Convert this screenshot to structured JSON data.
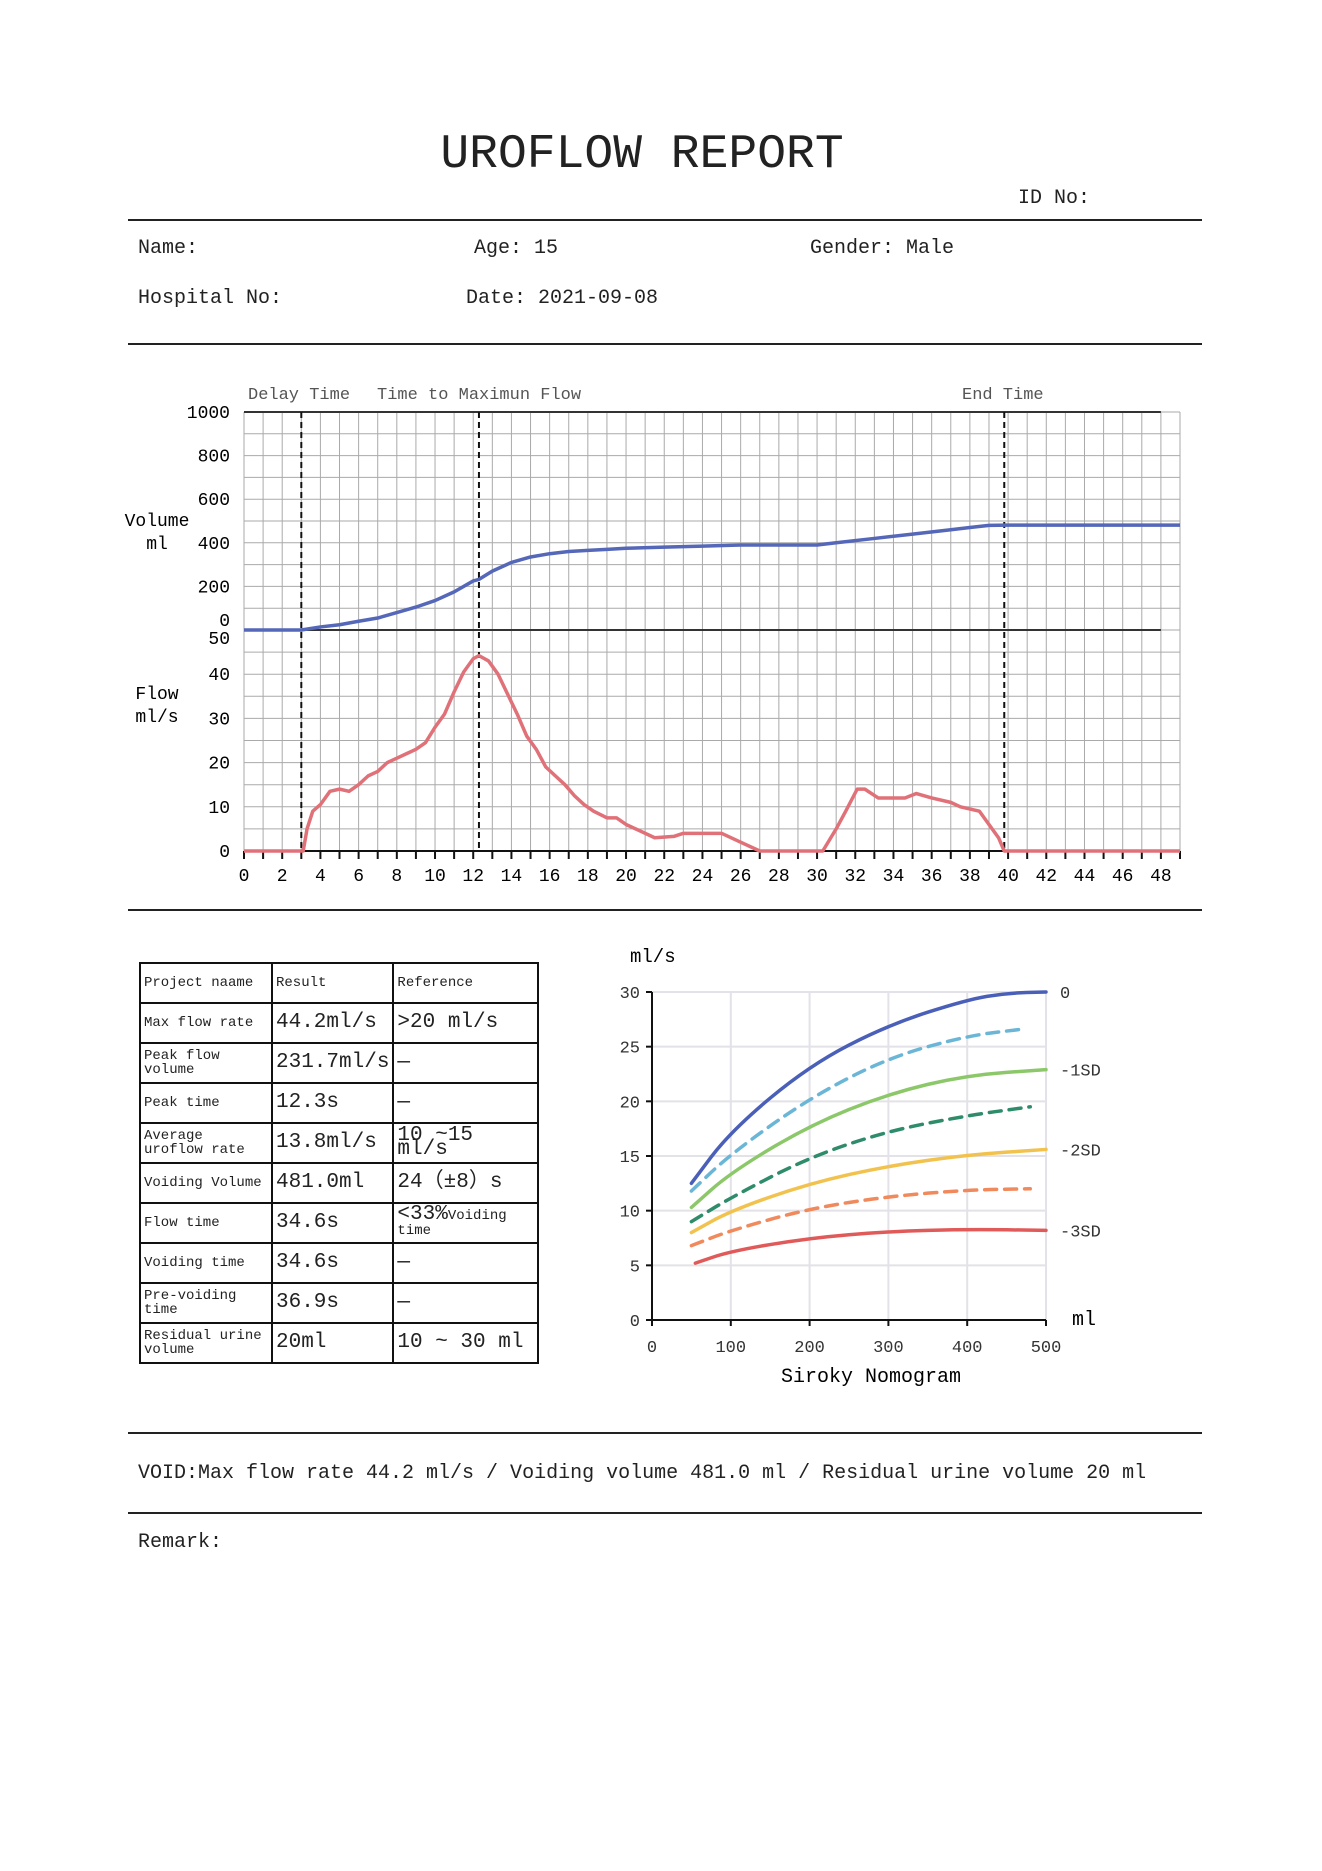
{
  "header": {
    "title": "UROFLOW REPORT",
    "id_label": "ID No:"
  },
  "patient": {
    "name_label": "Name:",
    "age_label": "Age:",
    "age": "15",
    "gender_label": "Gender:",
    "gender": "Male",
    "hospital_label": "Hospital No:",
    "date_label": "Date:",
    "date": "2021-09-08"
  },
  "chart_data": [
    {
      "type": "line",
      "markers": {
        "delay_time": {
          "label": "Delay Time",
          "t": 3.0
        },
        "max_flow": {
          "label": "Time to Maximun Flow",
          "t": 12.3
        },
        "end_time": {
          "label": "End Time",
          "t": 39.8
        }
      },
      "xlim": [
        0,
        49
      ],
      "x_ticks": [
        0,
        2,
        4,
        6,
        8,
        10,
        12,
        14,
        16,
        18,
        20,
        22,
        24,
        26,
        28,
        30,
        32,
        34,
        36,
        38,
        40,
        42,
        44,
        46,
        48
      ],
      "grid": true,
      "volume": {
        "ylabel": [
          "Volume",
          "ml"
        ],
        "ylim": [
          0,
          1000
        ],
        "y_ticks": [
          0,
          200,
          400,
          600,
          800,
          1000
        ],
        "color": "#5567b8",
        "t": [
          0,
          3,
          4,
          5,
          6,
          7,
          8,
          9,
          10,
          11,
          12,
          12.3,
          13,
          14,
          15,
          16,
          17,
          18,
          19,
          20,
          22,
          24,
          26,
          28,
          30,
          31,
          33,
          35,
          37,
          38,
          39,
          40,
          49
        ],
        "values": [
          0,
          0,
          14,
          24,
          40,
          55,
          80,
          105,
          135,
          175,
          225,
          232,
          270,
          310,
          335,
          350,
          360,
          365,
          370,
          375,
          380,
          385,
          390,
          390,
          390,
          400,
          420,
          440,
          460,
          470,
          480,
          481,
          481
        ]
      },
      "flow": {
        "ylabel": [
          "Flow",
          "ml/s"
        ],
        "ylim": [
          0,
          50
        ],
        "y_ticks": [
          0,
          10,
          20,
          30,
          40,
          50
        ],
        "color": "#e07178",
        "t": [
          0,
          3.1,
          3.3,
          3.6,
          4,
          4.5,
          5,
          5.5,
          6,
          6.5,
          7,
          7.5,
          8,
          8.5,
          9,
          9.5,
          10,
          10.5,
          11,
          11.5,
          12,
          12.3,
          12.8,
          13.3,
          13.8,
          14.3,
          14.8,
          15.3,
          15.8,
          16.3,
          16.8,
          17.3,
          17.8,
          18.3,
          19,
          19.5,
          20,
          20.5,
          21.5,
          22.5,
          23,
          24,
          25,
          26,
          27,
          30.3,
          31,
          31.5,
          32.1,
          32.5,
          33.2,
          34,
          34.6,
          35.2,
          36,
          37,
          37.5,
          38.5,
          39,
          39.5,
          39.8,
          49
        ],
        "values": [
          0,
          0,
          5,
          9,
          10.5,
          13.5,
          14,
          13.5,
          15,
          17,
          18,
          20,
          21,
          22,
          23,
          24.5,
          28,
          31,
          36,
          40.5,
          43.5,
          44.2,
          43,
          40,
          35.5,
          31,
          26,
          23,
          19,
          17,
          15,
          12.5,
          10.5,
          9,
          7.5,
          7.5,
          6,
          5,
          3,
          3.3,
          4,
          4,
          4,
          2,
          0,
          0,
          5,
          9,
          14,
          14,
          12,
          12,
          12,
          13,
          12,
          11,
          10,
          9,
          6,
          3,
          0,
          0
        ]
      }
    },
    {
      "type": "line",
      "title": "Siroky Nomogram",
      "xlabel": "ml",
      "ylabel": "ml/s",
      "xlim": [
        0,
        500
      ],
      "ylim": [
        0,
        30
      ],
      "x_ticks": [
        0,
        100,
        200,
        300,
        400,
        500
      ],
      "y_ticks": [
        0,
        5,
        10,
        15,
        20,
        25,
        30
      ],
      "grid": true,
      "series": [
        {
          "name": "0",
          "color": "#4a5fb8",
          "dashed": false,
          "x": [
            50,
            100,
            200,
            300,
            400,
            450,
            500
          ],
          "y": [
            12.5,
            17.3,
            23.3,
            27,
            29.3,
            29.9,
            30
          ]
        },
        {
          "color": "#6bb6d6",
          "dashed": true,
          "x": [
            50,
            100,
            200,
            300,
            400,
            470
          ],
          "y": [
            11.8,
            15.2,
            20.3,
            24,
            26,
            26.6
          ]
        },
        {
          "name": "-1SD",
          "color": "#8cc86a",
          "dashed": false,
          "x": [
            50,
            100,
            200,
            300,
            400,
            500
          ],
          "y": [
            10.3,
            13.5,
            17.8,
            20.7,
            22.4,
            22.9
          ]
        },
        {
          "color": "#2e8c6a",
          "dashed": true,
          "x": [
            50,
            100,
            200,
            300,
            400,
            480
          ],
          "y": [
            9,
            11.2,
            14.9,
            17.3,
            18.7,
            19.5
          ]
        },
        {
          "name": "-2SD",
          "color": "#f2c24e",
          "dashed": false,
          "x": [
            50,
            100,
            200,
            300,
            400,
            500
          ],
          "y": [
            8,
            10,
            12.5,
            14.1,
            15.1,
            15.6
          ]
        },
        {
          "color": "#f08a5d",
          "dashed": true,
          "x": [
            50,
            100,
            200,
            300,
            400,
            480
          ],
          "y": [
            6.8,
            8.2,
            10.2,
            11.3,
            11.9,
            12
          ]
        },
        {
          "name": "-3SD",
          "color": "#e05a5a",
          "dashed": false,
          "x": [
            55,
            100,
            200,
            300,
            400,
            500
          ],
          "y": [
            5.2,
            6.3,
            7.5,
            8.1,
            8.3,
            8.2
          ]
        }
      ]
    }
  ],
  "results_table": {
    "headers": [
      "Project naame",
      "Result",
      "Reference"
    ],
    "rows": [
      [
        "Max flow rate",
        "44.2ml/s",
        ">20 ml/s"
      ],
      [
        "Peak flow volume",
        "231.7ml/s",
        "—"
      ],
      [
        "Peak time",
        "12.3s",
        "—"
      ],
      [
        "Average uroflow rate",
        "13.8ml/s",
        "10 ~15 ml/s"
      ],
      [
        "Voiding Volume",
        "481.0ml",
        "24（±8）s"
      ],
      [
        "Flow time",
        "34.6s",
        "<33%Voiding time"
      ],
      [
        "Voiding time",
        "34.6s",
        "—"
      ],
      [
        "Pre-voiding time",
        "36.9s",
        "—"
      ],
      [
        "Residual urine volume",
        "20ml",
        "10 ~ 30 ml"
      ]
    ]
  },
  "summary": "VOID:Max flow rate 44.2 ml/s / Voiding volume 481.0 ml / Residual urine volume 20 ml",
  "remark_label": "Remark:"
}
